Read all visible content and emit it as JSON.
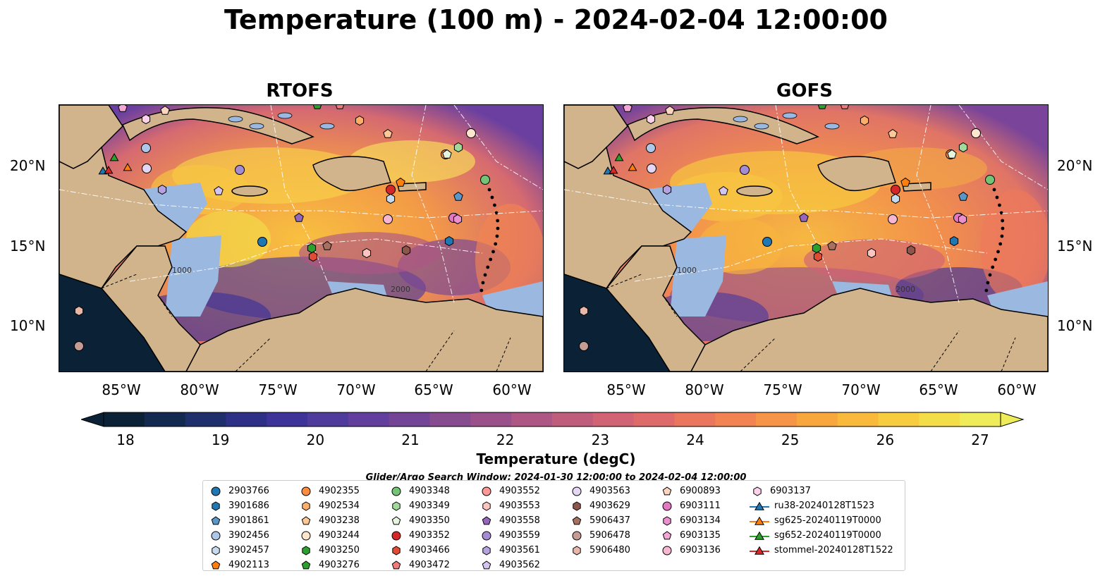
{
  "title": "Temperature (100 m) - 2024-02-04 12:00:00",
  "panels": [
    {
      "title": "RTOFS"
    },
    {
      "title": "GOFS"
    }
  ],
  "lat_labels": [
    "20°N",
    "15°N",
    "10°N"
  ],
  "lon_labels": [
    "85°W",
    "80°W",
    "75°W",
    "70°W",
    "65°W",
    "60°W"
  ],
  "colorbar": {
    "title": "Temperature (degC)",
    "ticks": [
      "18",
      "19",
      "20",
      "21",
      "22",
      "23",
      "24",
      "25",
      "26",
      "27"
    ],
    "min": 18,
    "max": 27,
    "colors": [
      "#0b2236",
      "#13294f",
      "#1f2f6b",
      "#2e2f86",
      "#3e3398",
      "#4f3b9c",
      "#623f9c",
      "#744596",
      "#874b90",
      "#9a518b",
      "#ae5684",
      "#c05c7c",
      "#d06374",
      "#de6b69",
      "#e9765d",
      "#f18452",
      "#f69547",
      "#f8a73f",
      "#f9ba3b",
      "#f7cc3e",
      "#f3dd48",
      "#eeec58"
    ]
  },
  "search_window": "Glider/Argo Search Window: 2024-01-30 12:00:00 to 2024-02-04 12:00:00",
  "map_labels": {
    "iso_1000": "1000",
    "iso_2000": "2000"
  },
  "legend": {
    "columns": [
      [
        {
          "label": "2903766",
          "marker": "circle",
          "color": "#1f77b4"
        },
        {
          "label": "3901686",
          "marker": "hexagon",
          "color": "#1f77b4"
        },
        {
          "label": "3901861",
          "marker": "pentagon",
          "color": "#5a96c7"
        },
        {
          "label": "3902456",
          "marker": "circle",
          "color": "#aec7e8"
        },
        {
          "label": "3902457",
          "marker": "hexagon",
          "color": "#c6dbef"
        },
        {
          "label": "4902113",
          "marker": "pentagon",
          "color": "#ff7f0e"
        }
      ],
      [
        {
          "label": "4902355",
          "marker": "circle",
          "color": "#fd8d3c"
        },
        {
          "label": "4902534",
          "marker": "hexagon",
          "color": "#fdae6b"
        },
        {
          "label": "4903238",
          "marker": "pentagon",
          "color": "#fdc896"
        },
        {
          "label": "4903244",
          "marker": "circle",
          "color": "#fee6ce"
        },
        {
          "label": "4903250",
          "marker": "hexagon",
          "color": "#2ca02c"
        },
        {
          "label": "4903276",
          "marker": "pentagon",
          "color": "#2ca02c"
        }
      ],
      [
        {
          "label": "4903348",
          "marker": "circle",
          "color": "#74c476"
        },
        {
          "label": "4903349",
          "marker": "hexagon",
          "color": "#a1d99b"
        },
        {
          "label": "4903350",
          "marker": "pentagon",
          "color": "#e5f5e0"
        },
        {
          "label": "4903352",
          "marker": "circle",
          "color": "#d62728"
        },
        {
          "label": "4903466",
          "marker": "hexagon",
          "color": "#e34a33"
        },
        {
          "label": "4903472",
          "marker": "pentagon",
          "color": "#f07a7a"
        }
      ],
      [
        {
          "label": "4903552",
          "marker": "circle",
          "color": "#ff9896"
        },
        {
          "label": "4903553",
          "marker": "hexagon",
          "color": "#fcc5c0"
        },
        {
          "label": "4903558",
          "marker": "pentagon",
          "color": "#9467bd"
        },
        {
          "label": "4903559",
          "marker": "circle",
          "color": "#a58bd3"
        },
        {
          "label": "4903561",
          "marker": "hexagon",
          "color": "#b6a2de"
        },
        {
          "label": "4903562",
          "marker": "pentagon",
          "color": "#d4c4f0"
        }
      ],
      [
        {
          "label": "4903563",
          "marker": "circle",
          "color": "#e3d7f4"
        },
        {
          "label": "4903629",
          "marker": "hexagon",
          "color": "#8c564b"
        },
        {
          "label": "5906437",
          "marker": "pentagon",
          "color": "#a87060"
        },
        {
          "label": "5906478",
          "marker": "circle",
          "color": "#c49c94"
        },
        {
          "label": "5906480",
          "marker": "hexagon",
          "color": "#e7b8a8"
        }
      ],
      [
        {
          "label": "6900893",
          "marker": "pentagon",
          "color": "#fcd5c0"
        },
        {
          "label": "6903111",
          "marker": "circle",
          "color": "#e377c2"
        },
        {
          "label": "6903134",
          "marker": "hexagon",
          "color": "#ec8fcf"
        },
        {
          "label": "6903135",
          "marker": "pentagon",
          "color": "#f4a6d7"
        },
        {
          "label": "6903136",
          "marker": "circle",
          "color": "#f7b6d2"
        }
      ],
      [
        {
          "label": "6903137",
          "marker": "hexagon",
          "color": "#fcd2ea"
        },
        {
          "label": "ru38-20240128T1523",
          "marker": "triangle",
          "color": "#1f77b4"
        },
        {
          "label": "sg625-20240119T0000",
          "marker": "triangle",
          "color": "#ff7f0e"
        },
        {
          "label": "sg652-20240119T0000",
          "marker": "triangle",
          "color": "#2ca02c"
        },
        {
          "label": "stommel-20240128T1522",
          "marker": "triangle",
          "color": "#d62728"
        }
      ]
    ]
  },
  "map_colors": {
    "land": "#d2b48c",
    "shelf": "#9ab8e0",
    "coast": "#000000",
    "border": "#000000"
  }
}
